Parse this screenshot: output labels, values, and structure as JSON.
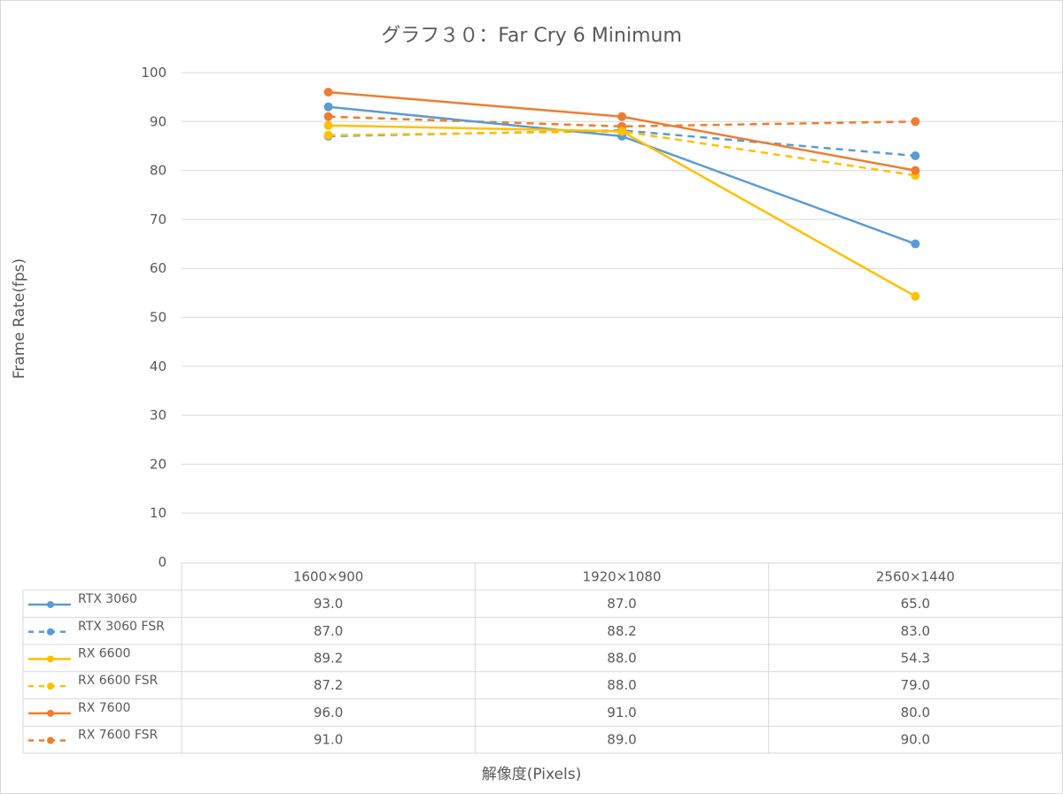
{
  "chart_data": {
    "type": "line",
    "title": "グラフ３０：Far Cry 6 Minimum",
    "xlabel": "解像度(Pixels)",
    "ylabel": "Frame Rate(fps)",
    "categories": [
      "1600×900",
      "1920×1080",
      "2560×1440"
    ],
    "ylim": [
      0,
      100
    ],
    "yticks": [
      0,
      10,
      20,
      30,
      40,
      50,
      60,
      70,
      80,
      90,
      100
    ],
    "grid": true,
    "legend": "data-table",
    "series": [
      {
        "name": "RTX 3060",
        "values": [
          93.0,
          87.0,
          65.0
        ],
        "color": "#5b9bd5",
        "dashed": false
      },
      {
        "name": "RTX 3060 FSR",
        "values": [
          87.0,
          88.2,
          83.0
        ],
        "color": "#5b9bd5",
        "dashed": true
      },
      {
        "name": "RX 6600",
        "values": [
          89.2,
          88.0,
          54.3
        ],
        "color": "#ffc000",
        "dashed": false
      },
      {
        "name": "RX 6600 FSR",
        "values": [
          87.2,
          88.0,
          79.0
        ],
        "color": "#ffc000",
        "dashed": true
      },
      {
        "name": "RX 7600",
        "values": [
          96.0,
          91.0,
          80.0
        ],
        "color": "#ed7d31",
        "dashed": false
      },
      {
        "name": "RX 7600 FSR",
        "values": [
          91.0,
          89.0,
          90.0
        ],
        "color": "#ed7d31",
        "dashed": true
      }
    ]
  }
}
